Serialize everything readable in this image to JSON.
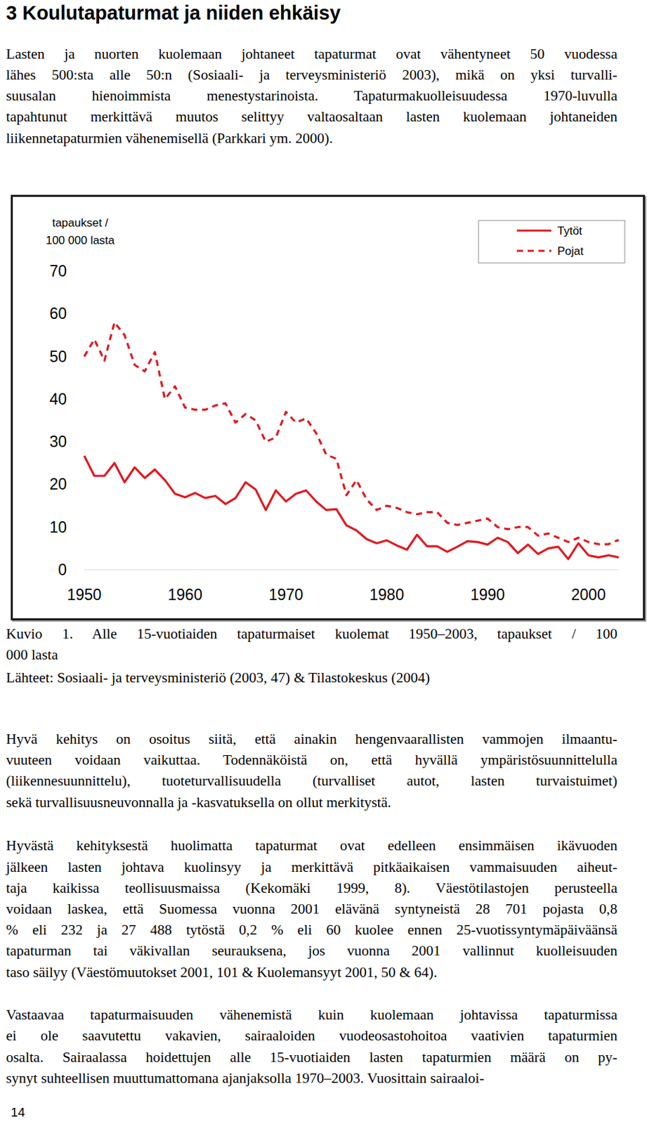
{
  "heading": "3 Koulutapaturmat ja niiden ehkäisy",
  "intro": [
    "Lasten ja nuorten kuolemaan johtaneet tapaturmat ovat vähentyneet 50 vuodessa",
    "lähes 500:sta alle 50:n (Sosiaali- ja terveysministeriö 2003), mikä on yksi turvalli-",
    "suusalan hienoimmista menestystarinoista. Tapaturmakuolleisuudessa 1970-luvulla",
    "tapahtunut merkittävä muutos selittyy valtaosaltaan lasten kuolemaan johtaneiden",
    "liikennetapaturmien vähenemisellä (Parkkari ym. 2000)."
  ],
  "chart_data": {
    "type": "line",
    "y_label": [
      "tapaukset /",
      "100 000 lasta"
    ],
    "x": [
      1950,
      1951,
      1952,
      1953,
      1954,
      1955,
      1956,
      1957,
      1958,
      1959,
      1960,
      1961,
      1962,
      1963,
      1964,
      1965,
      1966,
      1967,
      1968,
      1969,
      1970,
      1971,
      1972,
      1973,
      1974,
      1975,
      1976,
      1977,
      1978,
      1979,
      1980,
      1981,
      1982,
      1983,
      1984,
      1985,
      1986,
      1987,
      1988,
      1989,
      1990,
      1991,
      1992,
      1993,
      1994,
      1995,
      1996,
      1997,
      1998,
      1999,
      2000,
      2001,
      2002,
      2003
    ],
    "xlim": [
      1950,
      2003
    ],
    "xticks": [
      1950,
      1960,
      1970,
      1980,
      1990,
      2000
    ],
    "ylim": [
      0,
      70
    ],
    "yticks": [
      0,
      10,
      20,
      30,
      40,
      50,
      60,
      70
    ],
    "grid": false,
    "legend": "top-right",
    "series": [
      {
        "name": "Tytöt",
        "color": "#e1191f",
        "line_style": "solid",
        "values": [
          26.7,
          22,
          22,
          25,
          20.5,
          24,
          21.5,
          23.5,
          21,
          17.8,
          17,
          18,
          16.8,
          17.3,
          15.4,
          16.8,
          20.5,
          18.8,
          14,
          18.6,
          16,
          17.8,
          18.6,
          16,
          14,
          14.2,
          10.4,
          9.2,
          7.2,
          6.2,
          6.9,
          5.7,
          4.7,
          8.2,
          5.5,
          5.5,
          4.2,
          5.4,
          6.7,
          6.5,
          5.9,
          7.5,
          6.5,
          3.9,
          5.9,
          3.7,
          5,
          5.4,
          2.5,
          6.2,
          3.4,
          2.9,
          3.4,
          2.9
        ]
      },
      {
        "name": "Pojat",
        "color": "#e1191f",
        "line_style": "dashed",
        "values": [
          50,
          54,
          49,
          58,
          55,
          48,
          46.5,
          51,
          40,
          43,
          38,
          37.5,
          37.5,
          38.5,
          39,
          34.5,
          36.5,
          35,
          30,
          31,
          37,
          34.5,
          35.5,
          32,
          27,
          26,
          17.5,
          21,
          16.5,
          14,
          15,
          14.5,
          13.5,
          13,
          13.5,
          13.5,
          11,
          10.5,
          11,
          11.5,
          12,
          10,
          9.5,
          10,
          10,
          8,
          8.5,
          7.5,
          6.5,
          7.5,
          6.5,
          6,
          6,
          7
        ]
      }
    ]
  },
  "caption": [
    "Kuvio 1. Alle 15-vuotiaiden tapaturmaiset kuolemat 1950–2003, tapaukset / 100",
    "000 lasta"
  ],
  "source": "Lähteet: Sosiaali- ja terveysministeriö (2003, 47) & Tilastokeskus (2004)",
  "body": [
    [
      "Hyvä kehitys on osoitus siitä, että ainakin hengenvaarallisten vammojen ilmaantu-",
      "vuuteen voidaan vaikuttaa. Todennäköistä on, että hyvällä ympäristösuunnittelulla",
      "(liikennesuunnittelu), tuoteturvallisuudella (turvalliset autot, lasten turvaistuimet)",
      "sekä turvallisuusneuvonnalla ja -kasvatuksella on ollut merkitystä."
    ],
    [
      "Hyvästä kehityksestä huolimatta tapaturmat ovat edelleen ensimmäisen ikävuoden",
      "jälkeen lasten johtava kuolinsyy ja merkittävä pitkäaikaisen vammaisuuden aiheut-",
      "taja kaikissa teollisuusmaissa (Kekomäki 1999, 8).  Väestötilastojen perusteella",
      "voidaan laskea, että Suomessa vuonna 2001 elävänä syntyneistä 28 701 pojasta 0,8",
      "% eli 232 ja 27 488 tytöstä 0,2 % eli 60 kuolee ennen 25-vuotissyntymäpäiväänsä",
      "tapaturman tai väkivallan seurauksena, jos vuonna 2001 vallinnut kuolleisuuden",
      "taso säilyy (Väestömuutokset 2001, 101 & Kuolemansyyt 2001, 50 & 64)."
    ],
    [
      "Vastaavaa tapaturmaisuuden vähenemistä kuin kuolemaan johtavissa tapaturmissa",
      "ei ole saavutettu vakavien, sairaaloiden vuodeosastohoitoa vaativien tapaturmien",
      "osalta. Sairaalassa hoidettujen alle 15-vuotiaiden lasten tapaturmien määrä on py-",
      "synyt suhteellisen muuttumattomana ajanjaksolla 1970–2003. Vuosittain sairaaloi-"
    ]
  ],
  "page_number": "14"
}
